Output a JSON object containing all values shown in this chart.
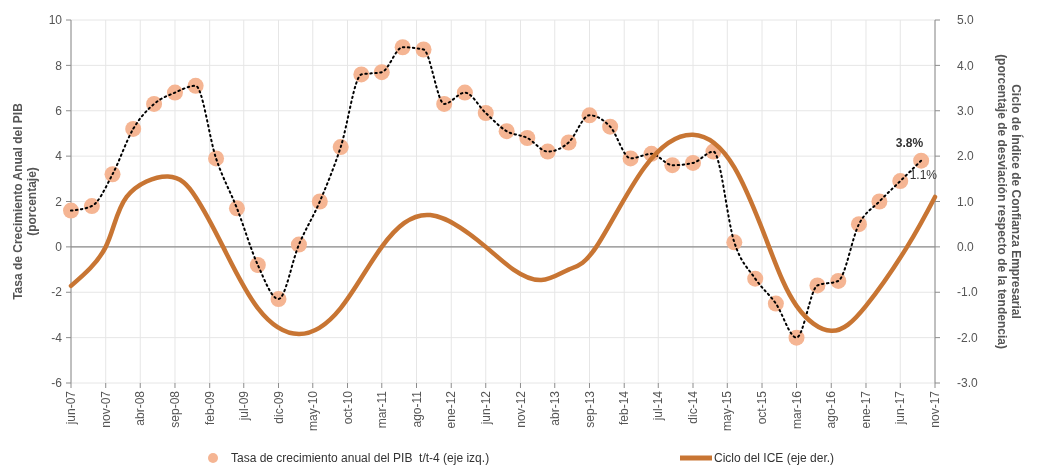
{
  "chart_data": {
    "type": "line",
    "ylabel": "Tasa de Crecimiento Anual del PIB\n(porcentaje)",
    "y2label": "Ciclo de Índice de Confianza Empresarial\n(porcentaje de desviación respecto de la tendencia)",
    "xlim": [
      "2007-06",
      "2017-11"
    ],
    "xticks": [
      {
        "value": "2007-06",
        "label": "jun-07"
      },
      {
        "value": "2007-11",
        "label": "nov-07"
      },
      {
        "value": "2008-04",
        "label": "abr-08"
      },
      {
        "value": "2008-09",
        "label": "sep-08"
      },
      {
        "value": "2009-02",
        "label": "feb-09"
      },
      {
        "value": "2009-07",
        "label": "jul-09"
      },
      {
        "value": "2009-12",
        "label": "dic-09"
      },
      {
        "value": "2010-05",
        "label": "may-10"
      },
      {
        "value": "2010-10",
        "label": "oct-10"
      },
      {
        "value": "2011-03",
        "label": "mar-11"
      },
      {
        "value": "2011-08",
        "label": "ago-11"
      },
      {
        "value": "2012-01",
        "label": "ene-12"
      },
      {
        "value": "2012-06",
        "label": "jun-12"
      },
      {
        "value": "2012-11",
        "label": "nov-12"
      },
      {
        "value": "2013-04",
        "label": "abr-13"
      },
      {
        "value": "2013-09",
        "label": "sep-13"
      },
      {
        "value": "2014-02",
        "label": "feb-14"
      },
      {
        "value": "2014-07",
        "label": "jul-14"
      },
      {
        "value": "2014-12",
        "label": "dic-14"
      },
      {
        "value": "2015-05",
        "label": "may-15"
      },
      {
        "value": "2015-10",
        "label": "oct-15"
      },
      {
        "value": "2016-03",
        "label": "mar-16"
      },
      {
        "value": "2016-08",
        "label": "ago-16"
      },
      {
        "value": "2017-01",
        "label": "ene-17"
      },
      {
        "value": "2017-06",
        "label": "jun-17"
      },
      {
        "value": "2017-11",
        "label": "nov-17"
      }
    ],
    "ylim": [
      -6,
      10
    ],
    "yticks": [
      -6,
      -4,
      -2,
      0,
      2,
      4,
      6,
      8,
      10
    ],
    "y2lim": [
      -3,
      5
    ],
    "y2ticks": [
      {
        "value": -3,
        "label": "-3.0"
      },
      {
        "value": -2,
        "label": "-2.0"
      },
      {
        "value": -1,
        "label": "-1.0"
      },
      {
        "value": 0,
        "label": "0.0"
      },
      {
        "value": 1,
        "label": "1.0"
      },
      {
        "value": 2,
        "label": "2.0"
      },
      {
        "value": 3,
        "label": "3.0"
      },
      {
        "value": 4,
        "label": "4.0"
      },
      {
        "value": 5,
        "label": "5.0"
      }
    ],
    "grid": true,
    "legend": "bottom",
    "series": [
      {
        "type": "scatter",
        "name": "Tasa de crecimiento anual del PIB  t/t-4 (eje izq.)",
        "color": "#f5b593",
        "marker": "circle",
        "x": [
          "2007-06",
          "2007-09",
          "2007-12",
          "2008-03",
          "2008-06",
          "2008-09",
          "2008-12",
          "2009-03",
          "2009-06",
          "2009-09",
          "2009-12",
          "2010-03",
          "2010-06",
          "2010-09",
          "2010-12",
          "2011-03",
          "2011-06",
          "2011-09",
          "2011-12",
          "2012-03",
          "2012-06",
          "2012-09",
          "2012-12",
          "2013-03",
          "2013-06",
          "2013-09",
          "2013-12",
          "2014-03",
          "2014-06",
          "2014-09",
          "2014-12",
          "2015-03",
          "2015-06",
          "2015-09",
          "2015-12",
          "2016-03",
          "2016-06",
          "2016-09",
          "2016-12",
          "2017-03",
          "2017-06",
          "2017-09"
        ],
        "values": [
          1.6,
          1.8,
          3.2,
          5.2,
          6.3,
          6.8,
          7.1,
          3.9,
          1.7,
          -0.8,
          -2.3,
          0.1,
          2.0,
          4.4,
          7.6,
          7.7,
          8.8,
          8.7,
          6.3,
          6.8,
          5.9,
          5.1,
          4.8,
          4.2,
          4.6,
          5.8,
          5.3,
          3.9,
          4.1,
          3.6,
          3.7,
          4.2,
          0.2,
          -1.4,
          -2.5,
          -4.0,
          -1.7,
          -1.5,
          1.0,
          2.0,
          2.9,
          3.8
        ],
        "value_labels": [
          null,
          null,
          null,
          null,
          null,
          null,
          null,
          null,
          null,
          null,
          null,
          null,
          null,
          null,
          null,
          null,
          null,
          null,
          null,
          null,
          null,
          null,
          null,
          null,
          null,
          null,
          null,
          null,
          null,
          null,
          null,
          null,
          null,
          null,
          null,
          null,
          null,
          null,
          null,
          null,
          null,
          "3.8%"
        ]
      },
      {
        "color": "#000000",
        "line_style": "dotted",
        "marker": "none",
        "x": [
          "2007-06",
          "2007-09",
          "2007-12",
          "2008-03",
          "2008-06",
          "2008-09",
          "2008-12",
          "2009-03",
          "2009-06",
          "2009-09",
          "2009-12",
          "2010-03",
          "2010-06",
          "2010-09",
          "2010-12",
          "2011-03",
          "2011-06",
          "2011-09",
          "2011-12",
          "2012-03",
          "2012-06",
          "2012-09",
          "2012-12",
          "2013-03",
          "2013-06",
          "2013-09",
          "2013-12",
          "2014-03",
          "2014-06",
          "2014-09",
          "2014-12",
          "2015-03",
          "2015-06",
          "2015-09",
          "2015-12",
          "2016-03",
          "2016-06",
          "2016-09",
          "2016-12",
          "2017-03",
          "2017-06",
          "2017-09"
        ],
        "values": [
          1.6,
          1.8,
          3.2,
          5.2,
          6.3,
          6.8,
          7.1,
          3.9,
          1.7,
          -0.8,
          -2.3,
          0.1,
          2.0,
          4.4,
          7.6,
          7.7,
          8.8,
          8.7,
          6.3,
          6.8,
          5.9,
          5.1,
          4.8,
          4.2,
          4.6,
          5.8,
          5.3,
          3.9,
          4.1,
          3.6,
          3.7,
          4.2,
          0.2,
          -1.4,
          -2.5,
          -4.0,
          -1.7,
          -1.5,
          1.0,
          2.0,
          2.9,
          3.8
        ]
      },
      {
        "name": "Ciclo del ICE (eje der.)",
        "color": "#c87533",
        "axis": "y2",
        "line_style": "solid",
        "marker": "none",
        "x": [
          "2007-06",
          "2007-11",
          "2008-02",
          "2008-08",
          "2008-12",
          "2009-04",
          "2009-09",
          "2010-03",
          "2010-09",
          "2011-03",
          "2011-10",
          "2012-06",
          "2012-10",
          "2013-02",
          "2013-06",
          "2013-10",
          "2014-05",
          "2014-12",
          "2015-06",
          "2015-11",
          "2016-03",
          "2016-08",
          "2017-01",
          "2017-07",
          "2017-11"
        ],
        "values": [
          -0.86,
          0,
          1.1,
          1.55,
          1.1,
          0,
          -1.35,
          -1.92,
          -1.35,
          0,
          0.7,
          0,
          -0.5,
          -0.73,
          -0.5,
          0,
          1.75,
          2.47,
          1.75,
          0,
          -1.3,
          -1.85,
          -1.3,
          0,
          1.1
        ],
        "value_labels": [
          null,
          null,
          null,
          null,
          null,
          null,
          null,
          null,
          null,
          null,
          null,
          null,
          null,
          null,
          null,
          null,
          null,
          null,
          null,
          null,
          null,
          null,
          null,
          null,
          "1.1%"
        ]
      }
    ]
  }
}
